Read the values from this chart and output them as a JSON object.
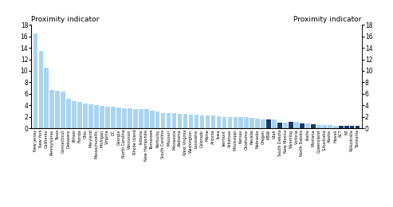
{
  "categories": [
    "New Jersey",
    "New York",
    "California",
    "Pennsylvania",
    "Texas",
    "Connecticut",
    "Delaware",
    "Illinois",
    "Florida",
    "Ohio",
    "Maryland",
    "Massachusetts",
    "Michigan",
    "Virginia",
    "DC",
    "Georgia",
    "North Carolina",
    "Wisconsin",
    "Rhode Island",
    "Indiana",
    "New Hampshire",
    "Tennessee",
    "Kentucky",
    "South Carolina",
    "Missouri",
    "Minnesota",
    "Alabama",
    "West Virginia",
    "Washington",
    "Louisiana",
    "Colorado",
    "Maine",
    "Arizona",
    "Iowa",
    "Vermont",
    "Arkansas",
    "Mississippi",
    "Kansas",
    "Oklahoma",
    "Nevada",
    "Nebraska",
    "Oregon",
    "MSW",
    "Utah",
    "South Dakota",
    "New Mexico",
    "Wyoming",
    "Victoria",
    "North Dakota",
    "Idaho",
    "Montana",
    "Queensland",
    "S.Australia",
    "Alaska",
    "Hawaii",
    "ACT",
    "NT",
    "W.Australia",
    "Tasmania"
  ],
  "values": [
    16.5,
    13.5,
    10.5,
    6.7,
    6.5,
    6.4,
    5.2,
    4.7,
    4.6,
    4.3,
    4.2,
    4.0,
    3.9,
    3.8,
    3.8,
    3.6,
    3.5,
    3.5,
    3.4,
    3.4,
    3.3,
    3.1,
    2.9,
    2.7,
    2.7,
    2.6,
    2.5,
    2.5,
    2.4,
    2.4,
    2.3,
    2.2,
    2.2,
    2.1,
    2.0,
    2.0,
    2.0,
    1.9,
    1.9,
    1.8,
    1.7,
    1.6,
    1.6,
    1.5,
    1.0,
    1.0,
    1.2,
    1.1,
    0.9,
    0.8,
    0.7,
    0.65,
    0.55,
    0.55,
    0.5,
    0.45,
    0.45,
    0.4,
    0.4
  ],
  "colors": [
    "#aad4f0",
    "#aad4f0",
    "#aad4f0",
    "#aad4f0",
    "#aad4f0",
    "#aad4f0",
    "#aad4f0",
    "#aad4f0",
    "#aad4f0",
    "#aad4f0",
    "#aad4f0",
    "#aad4f0",
    "#aad4f0",
    "#aad4f0",
    "#aad4f0",
    "#aad4f0",
    "#aad4f0",
    "#aad4f0",
    "#aad4f0",
    "#aad4f0",
    "#aad4f0",
    "#aad4f0",
    "#aad4f0",
    "#aad4f0",
    "#aad4f0",
    "#aad4f0",
    "#aad4f0",
    "#aad4f0",
    "#aad4f0",
    "#aad4f0",
    "#aad4f0",
    "#aad4f0",
    "#aad4f0",
    "#aad4f0",
    "#aad4f0",
    "#aad4f0",
    "#aad4f0",
    "#aad4f0",
    "#aad4f0",
    "#aad4f0",
    "#aad4f0",
    "#aad4f0",
    "#1a3a6b",
    "#aad4f0",
    "#1a3a6b",
    "#aad4f0",
    "#1a3a6b",
    "#aad4f0",
    "#1a3a6b",
    "#aad4f0",
    "#1a3a6b",
    "#aad4f0",
    "#aad4f0",
    "#aad4f0",
    "#aad4f0",
    "#1a3a6b",
    "#1a3a6b",
    "#1a3a6b",
    "#1a3a6b"
  ],
  "ylim": [
    0,
    18
  ],
  "yticks": [
    0,
    2,
    4,
    6,
    8,
    10,
    12,
    14,
    16,
    18
  ],
  "left_title": "Proximity indicator",
  "right_title": "Proximity indicator",
  "bar_width": 0.8,
  "label_fontsize": 3.5,
  "ytick_fontsize": 5.5
}
